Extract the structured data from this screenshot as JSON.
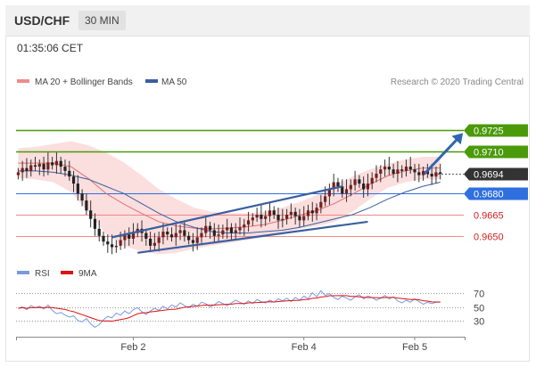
{
  "header": {
    "symbol": "USD/CHF",
    "timeframe": "30 MIN"
  },
  "timestamp": "01:35:06 CET",
  "colors": {
    "bollinger": "#f08a8a",
    "ma50": "#3a5fa0",
    "bull": "#7a1f1f",
    "bear": "#222222",
    "green": "#4a9a0a",
    "blue": "#2f6fe0",
    "red": "#ee8888",
    "dark": "#333333",
    "rsi": "#7a9ae0",
    "ma9": "#d11"
  },
  "chart_data": {
    "type": "candlestick",
    "legend": [
      "MA 20 + Bollinger Bands",
      "MA 50"
    ],
    "credit": "Research © 2020 Trading Central",
    "ylim": [
      0.9636,
      0.9752
    ],
    "x_ticks": [
      {
        "label": "Feb 2",
        "index": 27
      },
      {
        "label": "Feb 4",
        "index": 67
      },
      {
        "label": "Feb 5",
        "index": 93
      }
    ],
    "levels": [
      {
        "value": 0.9725,
        "label": "0.9725",
        "kind": "green"
      },
      {
        "value": 0.971,
        "label": "0.9710",
        "kind": "green"
      },
      {
        "value": 0.9694,
        "label": "0.9694",
        "kind": "current"
      },
      {
        "value": 0.968,
        "label": "0.9680",
        "kind": "blue"
      },
      {
        "value": 0.9665,
        "label": "0.9665",
        "kind": "red"
      },
      {
        "value": 0.965,
        "label": "0.9650",
        "kind": "red"
      }
    ],
    "closes": [
      0.9695,
      0.9698,
      0.9696,
      0.97,
      0.9699,
      0.9701,
      0.9697,
      0.9702,
      0.97,
      0.9703,
      0.9699,
      0.9696,
      0.9692,
      0.9687,
      0.968,
      0.9675,
      0.9668,
      0.9662,
      0.9655,
      0.965,
      0.9646,
      0.9644,
      0.9642,
      0.9643,
      0.9647,
      0.9651,
      0.9648,
      0.9652,
      0.9655,
      0.9652,
      0.9648,
      0.9643,
      0.9645,
      0.9649,
      0.9653,
      0.9651,
      0.9649,
      0.9652,
      0.9654,
      0.965,
      0.9647,
      0.9645,
      0.9649,
      0.9652,
      0.9657,
      0.9654,
      0.965,
      0.9651,
      0.9654,
      0.9656,
      0.9652,
      0.9654,
      0.9656,
      0.9658,
      0.9661,
      0.9663,
      0.9665,
      0.9662,
      0.9664,
      0.9668,
      0.9665,
      0.9661,
      0.9662,
      0.9665,
      0.9667,
      0.9664,
      0.9661,
      0.9664,
      0.9668,
      0.9666,
      0.967,
      0.9674,
      0.9678,
      0.9683,
      0.9688,
      0.9685,
      0.968,
      0.9683,
      0.9686,
      0.969,
      0.9687,
      0.9683,
      0.9687,
      0.9691,
      0.9694,
      0.9697,
      0.9699,
      0.9697,
      0.9694,
      0.9697,
      0.9696,
      0.9699,
      0.9697,
      0.9695,
      0.9693,
      0.9696,
      0.9694,
      0.9692,
      0.9695,
      0.9694
    ],
    "bollinger": {
      "upper": [
        0.9712,
        0.9713,
        0.9715,
        0.9717,
        0.9714,
        0.9709,
        0.9702,
        0.9693,
        0.9683,
        0.9676,
        0.967,
        0.9667,
        0.9666,
        0.9666,
        0.9667,
        0.967,
        0.9674,
        0.9679,
        0.9686,
        0.9692,
        0.9697,
        0.9701,
        0.9704,
        0.9706,
        0.9706
      ],
      "lower": [
        0.9691,
        0.969,
        0.9688,
        0.9681,
        0.9667,
        0.9651,
        0.9643,
        0.9639,
        0.9637,
        0.9638,
        0.9641,
        0.9643,
        0.9645,
        0.9647,
        0.9649,
        0.9652,
        0.9655,
        0.9657,
        0.966,
        0.9667,
        0.9676,
        0.9684,
        0.9688,
        0.969,
        0.969
      ]
    },
    "ma50": [
      0.9696,
      0.9696,
      0.9695,
      0.9693,
      0.969,
      0.9685,
      0.968,
      0.9673,
      0.9666,
      0.966,
      0.9656,
      0.9653,
      0.9652,
      0.9652,
      0.9653,
      0.9654,
      0.9656,
      0.9659,
      0.9662,
      0.9665,
      0.967,
      0.9676,
      0.9681,
      0.9685,
      0.9688
    ],
    "projection": {
      "from": 0.9694,
      "to": 0.972
    },
    "channel": [
      {
        "from": {
          "index": 22,
          "value": 0.9649
        },
        "to": {
          "index": 76,
          "value": 0.9685
        }
      },
      {
        "from": {
          "index": 28,
          "value": 0.9638
        },
        "to": {
          "index": 82,
          "value": 0.966
        }
      }
    ],
    "rsi_panel": {
      "legend": [
        "RSI",
        "9MA"
      ],
      "ylim": [
        10,
        85
      ],
      "levels": [
        70,
        50,
        30
      ],
      "tick_labels": [
        "70",
        "50",
        "30"
      ],
      "rsi": [
        48,
        50,
        46,
        52,
        49,
        51,
        47,
        53,
        45,
        40,
        42,
        38,
        35,
        37,
        30,
        28,
        33,
        25,
        20,
        24,
        31,
        36,
        34,
        41,
        38,
        44,
        40,
        46,
        49,
        43,
        39,
        44,
        48,
        45,
        51,
        47,
        53,
        50,
        56,
        52,
        49,
        54,
        51,
        57,
        55,
        50,
        53,
        58,
        55,
        52,
        56,
        60,
        57,
        54,
        59,
        55,
        61,
        58,
        56,
        60,
        57,
        62,
        59,
        63,
        58,
        64,
        60,
        66,
        62,
        71,
        65,
        74,
        67,
        70,
        64,
        61,
        66,
        63,
        60,
        65,
        68,
        62,
        66,
        64,
        60,
        63,
        67,
        62,
        65,
        59,
        56,
        60,
        57,
        62,
        58,
        54,
        57,
        55,
        57,
        57
      ]
    }
  }
}
